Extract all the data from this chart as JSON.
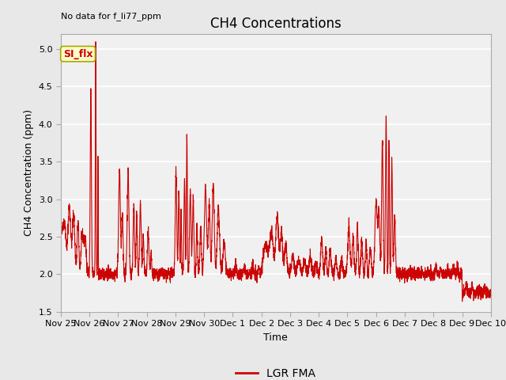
{
  "title": "CH4 Concentrations",
  "xlabel": "Time",
  "ylabel": "CH4 Concentration (ppm)",
  "top_left_text": "No data for f_li77_ppm",
  "legend_label": "LGR FMA",
  "line_color": "#cc0000",
  "line_width": 0.8,
  "ylim": [
    1.5,
    5.2
  ],
  "yticks": [
    1.5,
    2.0,
    2.5,
    3.0,
    3.5,
    4.0,
    4.5,
    5.0
  ],
  "background_color": "#e8e8e8",
  "plot_facecolor": "#f0f0f0",
  "grid_color": "white",
  "annotation_text": "SI_flx",
  "annotation_color": "#cc0000",
  "annotation_bg": "#ffffcc",
  "annotation_border": "#aaa800",
  "tick_label_fontsize": 8,
  "ylabel_fontsize": 9,
  "xlabel_fontsize": 9,
  "title_fontsize": 12
}
